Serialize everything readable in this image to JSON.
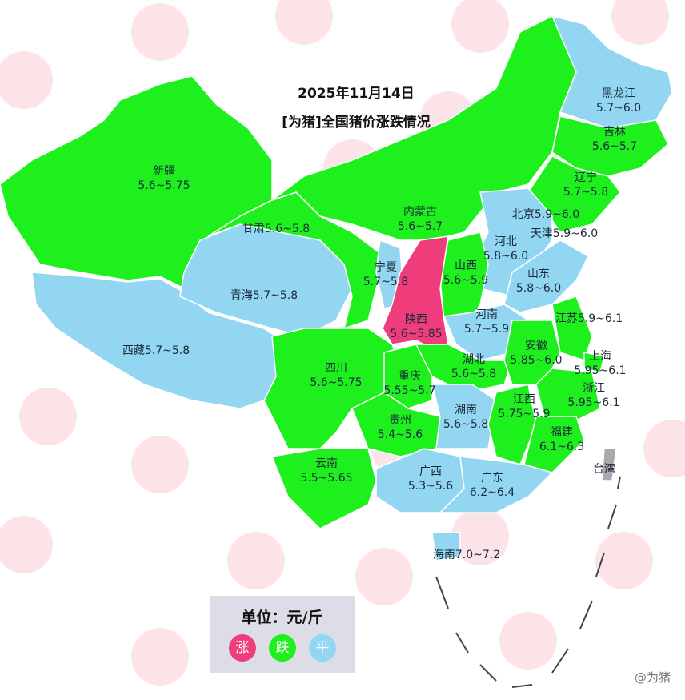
{
  "title": {
    "date": "2025年11月14日",
    "subtitle": "[为猪]全国猪价涨跌情况"
  },
  "colors": {
    "rise": "#ee3d7a",
    "fall": "#1ef01e",
    "flat": "#92d6f2"
  },
  "provinces": [
    {
      "name": "新疆",
      "range": "5.6~5.75",
      "status": "fall"
    },
    {
      "name": "西藏",
      "range": "5.7~5.8",
      "status": "flat"
    },
    {
      "name": "青海",
      "range": "5.7~5.8",
      "status": "flat"
    },
    {
      "name": "甘肃",
      "range": "5.6~5.8",
      "status": "fall"
    },
    {
      "name": "内蒙古",
      "range": "5.6~5.7",
      "status": "fall"
    },
    {
      "name": "黑龙江",
      "range": "5.7~6.0",
      "status": "flat"
    },
    {
      "name": "吉林",
      "range": "5.6~5.7",
      "status": "fall"
    },
    {
      "name": "辽宁",
      "range": "5.7~5.8",
      "status": "fall"
    },
    {
      "name": "北京",
      "range": "5.9~6.0",
      "status": "flat"
    },
    {
      "name": "天津",
      "range": "5.9~6.0",
      "status": "flat"
    },
    {
      "name": "河北",
      "range": "5.8~6.0",
      "status": "flat"
    },
    {
      "name": "山东",
      "range": "5.8~6.0",
      "status": "flat"
    },
    {
      "name": "山西",
      "range": "5.6~5.9",
      "status": "fall"
    },
    {
      "name": "宁夏",
      "range": "5.7~5.8",
      "status": "flat"
    },
    {
      "name": "陕西",
      "range": "5.6~5.85",
      "status": "rise"
    },
    {
      "name": "河南",
      "range": "5.7~5.9",
      "status": "flat"
    },
    {
      "name": "湖北",
      "range": "5.6~5.8",
      "status": "fall"
    },
    {
      "name": "四川",
      "range": "5.6~5.75",
      "status": "fall"
    },
    {
      "name": "重庆",
      "range": "5.55~5.7",
      "status": "fall"
    },
    {
      "name": "贵州",
      "range": "5.4~5.6",
      "status": "fall"
    },
    {
      "name": "云南",
      "range": "5.5~5.65",
      "status": "fall"
    },
    {
      "name": "湖南",
      "range": "5.6~5.8",
      "status": "flat"
    },
    {
      "name": "江西",
      "range": "5.75~5.9",
      "status": "fall"
    },
    {
      "name": "安徽",
      "range": "5.85~6.0",
      "status": "fall"
    },
    {
      "name": "江苏",
      "range": "5.9~6.1",
      "status": "fall"
    },
    {
      "name": "上海",
      "range": "5.95~6.1",
      "status": "fall"
    },
    {
      "name": "浙江",
      "range": "5.95~6.1",
      "status": "fall"
    },
    {
      "name": "福建",
      "range": "6.1~6.3",
      "status": "fall"
    },
    {
      "name": "广西",
      "range": "5.3~5.6",
      "status": "flat"
    },
    {
      "name": "广东",
      "range": "6.2~6.4",
      "status": "flat"
    },
    {
      "name": "海南",
      "range": "7.0~7.2",
      "status": "flat"
    },
    {
      "name": "台湾",
      "range": "",
      "status": "none"
    }
  ],
  "legend": {
    "unit": "单位：元/斤",
    "rise": "涨",
    "fall": "跌",
    "flat": "平"
  },
  "credit": "@为猪"
}
